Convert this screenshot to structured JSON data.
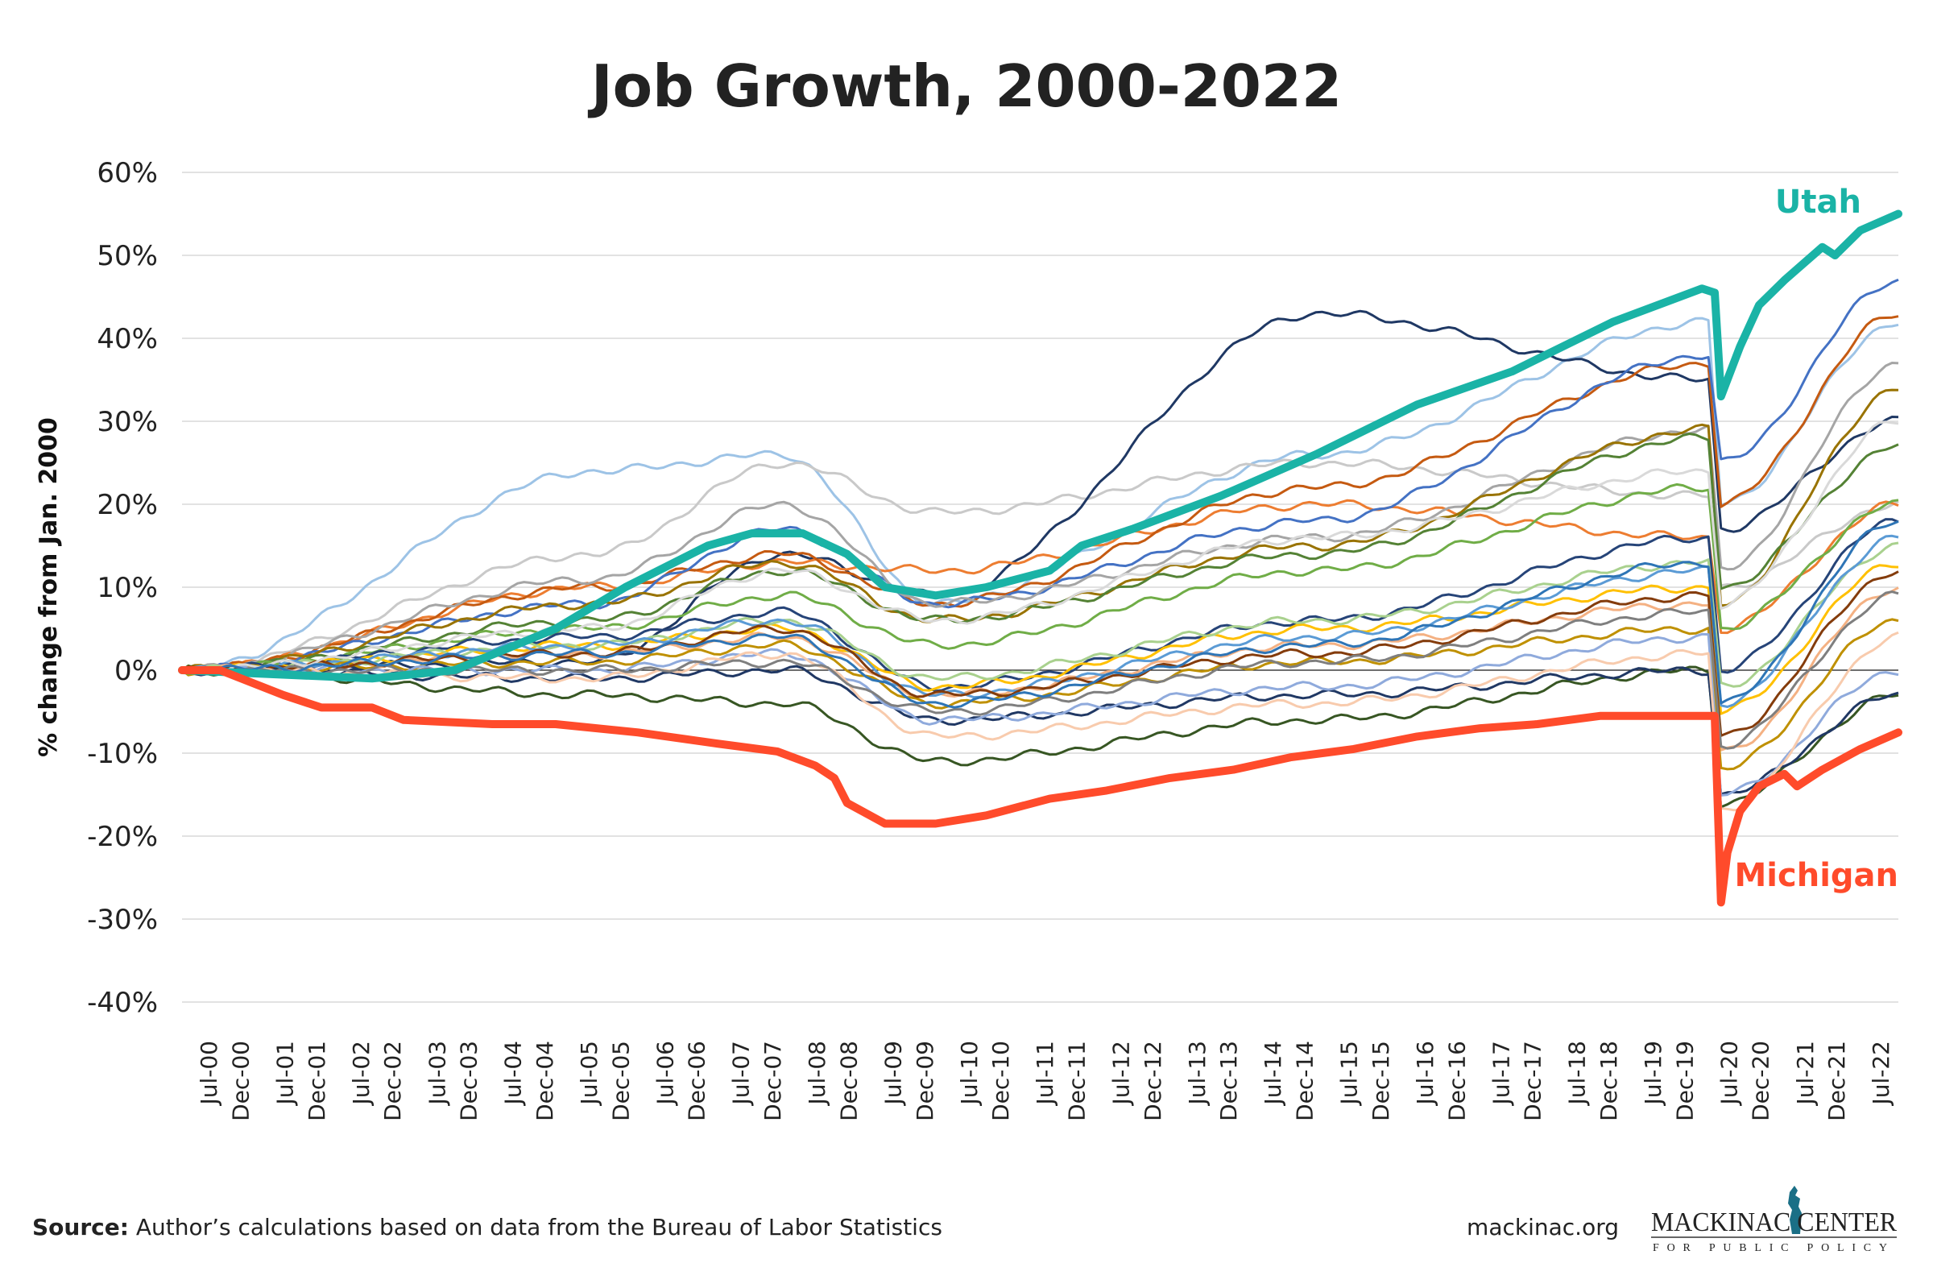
{
  "chart_data": {
    "type": "line",
    "title": "Job Growth, 2000-2022",
    "ylabel": "% change from Jan. 2000",
    "xlabel": "",
    "ylim": [
      -40,
      60
    ],
    "yticks": [
      "60%",
      "50%",
      "40%",
      "30%",
      "20%",
      "10%",
      "0%",
      "-10%",
      "-20%",
      "-30%",
      "-40%"
    ],
    "ytick_values": [
      60,
      50,
      40,
      30,
      20,
      10,
      0,
      -10,
      -20,
      -30,
      -40
    ],
    "xrange": [
      "2000-01",
      "2022-08"
    ],
    "xticks": [
      "Jul-00",
      "Dec-00",
      "Jul-01",
      "Dec-01",
      "Jul-02",
      "Dec-02",
      "Jul-03",
      "Dec-03",
      "Jul-04",
      "Dec-04",
      "Jul-05",
      "Dec-05",
      "Jul-06",
      "Dec-06",
      "Jul-07",
      "Dec-07",
      "Jul-08",
      "Dec-08",
      "Jul-09",
      "Dec-09",
      "Jul-10",
      "Dec-10",
      "Jul-11",
      "Dec-11",
      "Jul-12",
      "Dec-12",
      "Jul-13",
      "Dec-13",
      "Jul-14",
      "Dec-14",
      "Jul-15",
      "Dec-15",
      "Jul-16",
      "Dec-16",
      "Jul-17",
      "Dec-17",
      "Jul-18",
      "Dec-18",
      "Jul-19",
      "Dec-19",
      "Jul-20",
      "Dec-20",
      "Jul-21",
      "Dec-21",
      "Jul-22"
    ],
    "grid": true,
    "legend": "none",
    "highlighted": [
      {
        "name": "Utah",
        "color": "#1ab3a6",
        "points": [
          [
            "2000-01",
            0
          ],
          [
            "2002-07",
            -1
          ],
          [
            "2003-08",
            0
          ],
          [
            "2004-12",
            5
          ],
          [
            "2005-11",
            10
          ],
          [
            "2006-12",
            15
          ],
          [
            "2007-07",
            16.5
          ],
          [
            "2008-03",
            16.5
          ],
          [
            "2008-10",
            14
          ],
          [
            "2009-04",
            10
          ],
          [
            "2009-12",
            9
          ],
          [
            "2010-08",
            10
          ],
          [
            "2011-06",
            12
          ],
          [
            "2011-11",
            15
          ],
          [
            "2012-07",
            17
          ],
          [
            "2013-09",
            21
          ],
          [
            "2014-12",
            26
          ],
          [
            "2016-04",
            32
          ],
          [
            "2017-07",
            36
          ],
          [
            "2018-11",
            42
          ],
          [
            "2020-01",
            46
          ],
          [
            "2020-03",
            45.5
          ],
          [
            "2020-04",
            33
          ],
          [
            "2020-07",
            39
          ],
          [
            "2020-10",
            44
          ],
          [
            "2021-02",
            47
          ],
          [
            "2021-08",
            51
          ],
          [
            "2021-10",
            50
          ],
          [
            "2022-02",
            53
          ],
          [
            "2022-08",
            55
          ]
        ]
      },
      {
        "name": "Michigan",
        "color": "#ff4b2b",
        "points": [
          [
            "2000-01",
            0
          ],
          [
            "2000-07",
            0
          ],
          [
            "2001-05",
            -3
          ],
          [
            "2001-11",
            -4.5
          ],
          [
            "2002-07",
            -4.5
          ],
          [
            "2002-12",
            -6
          ],
          [
            "2004-02",
            -6.5
          ],
          [
            "2004-12",
            -6.5
          ],
          [
            "2006-01",
            -7.5
          ],
          [
            "2007-01",
            -8.8
          ],
          [
            "2007-11",
            -9.8
          ],
          [
            "2008-05",
            -11.5
          ],
          [
            "2008-08",
            -13
          ],
          [
            "2008-10",
            -16
          ],
          [
            "2009-04",
            -18.5
          ],
          [
            "2009-12",
            -18.5
          ],
          [
            "2010-08",
            -17.5
          ],
          [
            "2011-06",
            -15.5
          ],
          [
            "2012-03",
            -14.5
          ],
          [
            "2013-01",
            -13
          ],
          [
            "2013-11",
            -12
          ],
          [
            "2014-08",
            -10.5
          ],
          [
            "2015-06",
            -9.5
          ],
          [
            "2016-04",
            -8
          ],
          [
            "2017-02",
            -7
          ],
          [
            "2017-11",
            -6.5
          ],
          [
            "2018-09",
            -5.5
          ],
          [
            "2019-07",
            -5.5
          ],
          [
            "2020-03",
            -5.5
          ],
          [
            "2020-04",
            -28
          ],
          [
            "2020-05",
            -22
          ],
          [
            "2020-07",
            -17
          ],
          [
            "2020-10",
            -14
          ],
          [
            "2021-02",
            -12.5
          ],
          [
            "2021-04",
            -14
          ],
          [
            "2021-08",
            -12
          ],
          [
            "2022-02",
            -9.5
          ],
          [
            "2022-08",
            -7.5
          ]
        ]
      }
    ],
    "other_series_dates": [
      "2000-01",
      "2005-06",
      "2007-12",
      "2009-12",
      "2014-12",
      "2020-02",
      "2020-04",
      "2022-08"
    ],
    "other_series": [
      {
        "color": "#9dc3e6",
        "values": [
          0,
          24,
          26,
          8,
          26,
          42,
          20,
          42
        ]
      },
      {
        "color": "#c9c9c9",
        "values": [
          0,
          14,
          25,
          19,
          25,
          21,
          10,
          20
        ]
      },
      {
        "color": "#1f3864",
        "values": [
          0,
          1,
          14,
          9,
          43,
          35,
          17,
          30
        ]
      },
      {
        "color": "#ed7d31",
        "values": [
          0,
          10,
          13,
          12,
          20,
          16,
          5,
          20
        ]
      },
      {
        "color": "#c55a11",
        "values": [
          0,
          10,
          14,
          8,
          22,
          37,
          20,
          43
        ]
      },
      {
        "color": "#4472c4",
        "values": [
          0,
          8,
          17,
          8,
          18,
          38,
          25,
          47
        ]
      },
      {
        "color": "#a5a5a5",
        "values": [
          0,
          11,
          20,
          8,
          16,
          29,
          12,
          37
        ]
      },
      {
        "color": "#997300",
        "values": [
          0,
          8,
          13,
          6,
          15,
          29,
          8,
          34
        ]
      },
      {
        "color": "#548235",
        "values": [
          0,
          6,
          12,
          6,
          14,
          28,
          10,
          27
        ]
      },
      {
        "color": "#70ad47",
        "values": [
          0,
          5,
          9,
          3,
          12,
          22,
          5,
          20
        ]
      },
      {
        "color": "#264478",
        "values": [
          0,
          4,
          7,
          -2,
          6,
          16,
          0,
          18
        ]
      },
      {
        "color": "#ffc000",
        "values": [
          0,
          3,
          5,
          -2,
          5,
          10,
          -5,
          13
        ]
      },
      {
        "color": "#f4b183",
        "values": [
          0,
          2,
          4,
          -3,
          3,
          8,
          -10,
          10
        ]
      },
      {
        "color": "#a9d18e",
        "values": [
          0,
          3,
          6,
          -1,
          6,
          13,
          -2,
          15
        ]
      },
      {
        "color": "#5b9bd5",
        "values": [
          0,
          3,
          6,
          -3,
          4,
          12,
          -4,
          16
        ]
      },
      {
        "color": "#375623",
        "values": [
          0,
          -3,
          -4,
          -11,
          -6,
          0,
          -16,
          -3
        ]
      },
      {
        "color": "#203864",
        "values": [
          0,
          -1,
          0,
          -6,
          -3,
          0,
          -15,
          -3
        ]
      },
      {
        "color": "#bf9000",
        "values": [
          0,
          1,
          3,
          -4,
          1,
          5,
          -12,
          6
        ]
      },
      {
        "color": "#8faadc",
        "values": [
          0,
          0,
          2,
          -6,
          -2,
          4,
          -15,
          0
        ]
      },
      {
        "color": "#843c0c",
        "values": [
          0,
          2,
          5,
          -3,
          2,
          9,
          -8,
          12
        ]
      },
      {
        "color": "#f8cbad",
        "values": [
          0,
          -1,
          2,
          -8,
          -4,
          2,
          -17,
          4
        ]
      },
      {
        "color": "#7f7f7f",
        "values": [
          0,
          0,
          1,
          -5,
          1,
          7,
          -9,
          9
        ]
      },
      {
        "color": "#d9d9d9",
        "values": [
          0,
          5,
          12,
          6,
          16,
          24,
          8,
          30
        ]
      },
      {
        "color": "#2e75b6",
        "values": [
          0,
          2,
          4,
          -4,
          3,
          13,
          -4,
          18
        ]
      }
    ]
  },
  "footer": {
    "source_label": "Source:",
    "source_text": " Author’s calculations based on data from the Bureau of Labor Statistics",
    "website": "mackinac.org",
    "logo_main": "MACKINAC CENTER",
    "logo_sub": "FOR PUBLIC POLICY"
  },
  "colors": {
    "utah": "#1ab3a6",
    "michigan": "#ff4b2b",
    "logo": "#1a6f86"
  }
}
